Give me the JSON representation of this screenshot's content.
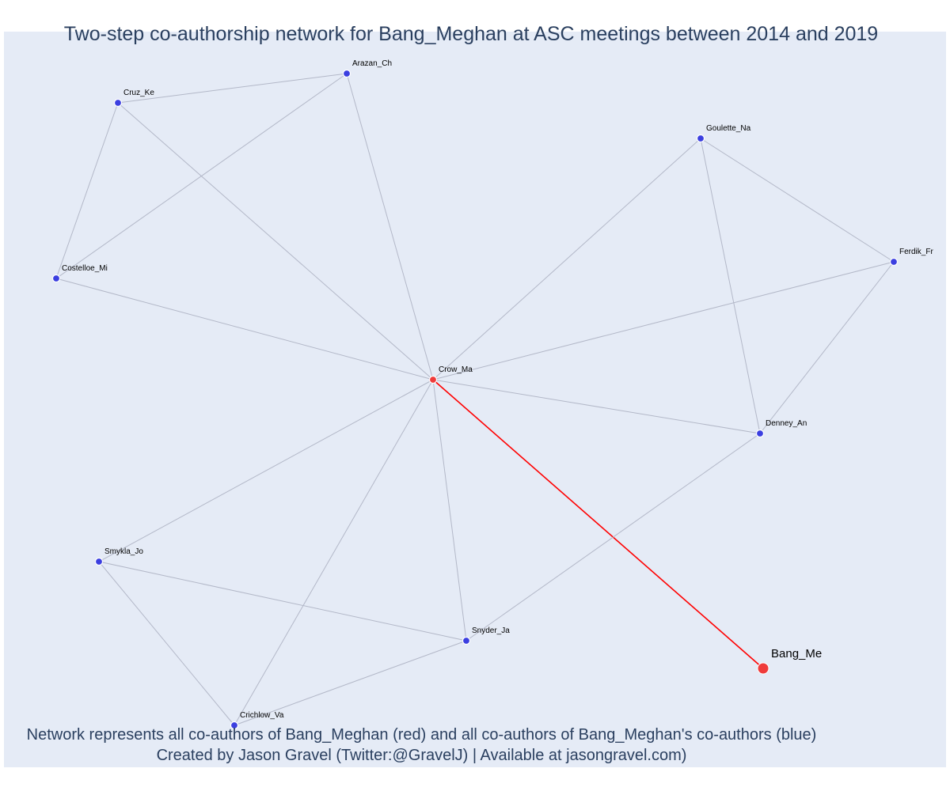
{
  "title": "Two-step co-authorship network for Bang_Meghan at ASC meetings between 2014 and 2019",
  "footer": {
    "line1": "Network represents all co-authors of Bang_Meghan (red) and all co-authors of Bang_Meghan's co-authors (blue)",
    "line2": "Created by Jason Gravel (Twitter:@GravelJ) | Available at jasongravel.com)"
  },
  "colors": {
    "background": "#e5ebf6",
    "edge": "#b3b8c8",
    "focal_edge": "#ff0000",
    "direct_coauthor": "#ef3b3b",
    "second_step_coauthor": "#3b3fe0",
    "title_text": "#2a3f5f"
  },
  "network": {
    "focal": "Bang_Me",
    "nodes": [
      {
        "id": "Bang_Me",
        "label": "Bang_Me",
        "group": "focal"
      },
      {
        "id": "Crow_Ma",
        "label": "Crow_Ma",
        "group": "direct"
      },
      {
        "id": "Arazan_Ch",
        "label": "Arazan_Ch",
        "group": "second"
      },
      {
        "id": "Cruz_Ke",
        "label": "Cruz_Ke",
        "group": "second"
      },
      {
        "id": "Goulette_Na",
        "label": "Goulette_Na",
        "group": "second"
      },
      {
        "id": "Ferdik_Fr",
        "label": "Ferdik_Fr",
        "group": "second"
      },
      {
        "id": "Costelloe_Mi",
        "label": "Costelloe_Mi",
        "group": "second"
      },
      {
        "id": "Denney_An",
        "label": "Denney_An",
        "group": "second"
      },
      {
        "id": "Smykla_Jo",
        "label": "Smykla_Jo",
        "group": "second"
      },
      {
        "id": "Snyder_Ja",
        "label": "Snyder_Ja",
        "group": "second"
      },
      {
        "id": "Crichlow_Va",
        "label": "Crichlow_Va",
        "group": "second"
      }
    ],
    "edges": [
      {
        "source": "Bang_Me",
        "target": "Crow_Ma",
        "focal": true
      },
      {
        "source": "Crow_Ma",
        "target": "Arazan_Ch"
      },
      {
        "source": "Crow_Ma",
        "target": "Cruz_Ke"
      },
      {
        "source": "Crow_Ma",
        "target": "Costelloe_Mi"
      },
      {
        "source": "Crow_Ma",
        "target": "Goulette_Na"
      },
      {
        "source": "Crow_Ma",
        "target": "Ferdik_Fr"
      },
      {
        "source": "Crow_Ma",
        "target": "Denney_An"
      },
      {
        "source": "Crow_Ma",
        "target": "Smykla_Jo"
      },
      {
        "source": "Crow_Ma",
        "target": "Snyder_Ja"
      },
      {
        "source": "Crow_Ma",
        "target": "Crichlow_Va"
      },
      {
        "source": "Cruz_Ke",
        "target": "Arazan_Ch"
      },
      {
        "source": "Cruz_Ke",
        "target": "Costelloe_Mi"
      },
      {
        "source": "Arazan_Ch",
        "target": "Costelloe_Mi"
      },
      {
        "source": "Goulette_Na",
        "target": "Ferdik_Fr"
      },
      {
        "source": "Goulette_Na",
        "target": "Denney_An"
      },
      {
        "source": "Ferdik_Fr",
        "target": "Denney_An"
      },
      {
        "source": "Denney_An",
        "target": "Snyder_Ja"
      },
      {
        "source": "Smykla_Jo",
        "target": "Snyder_Ja"
      },
      {
        "source": "Smykla_Jo",
        "target": "Crichlow_Va"
      },
      {
        "source": "Snyder_Ja",
        "target": "Crichlow_Va"
      }
    ]
  }
}
